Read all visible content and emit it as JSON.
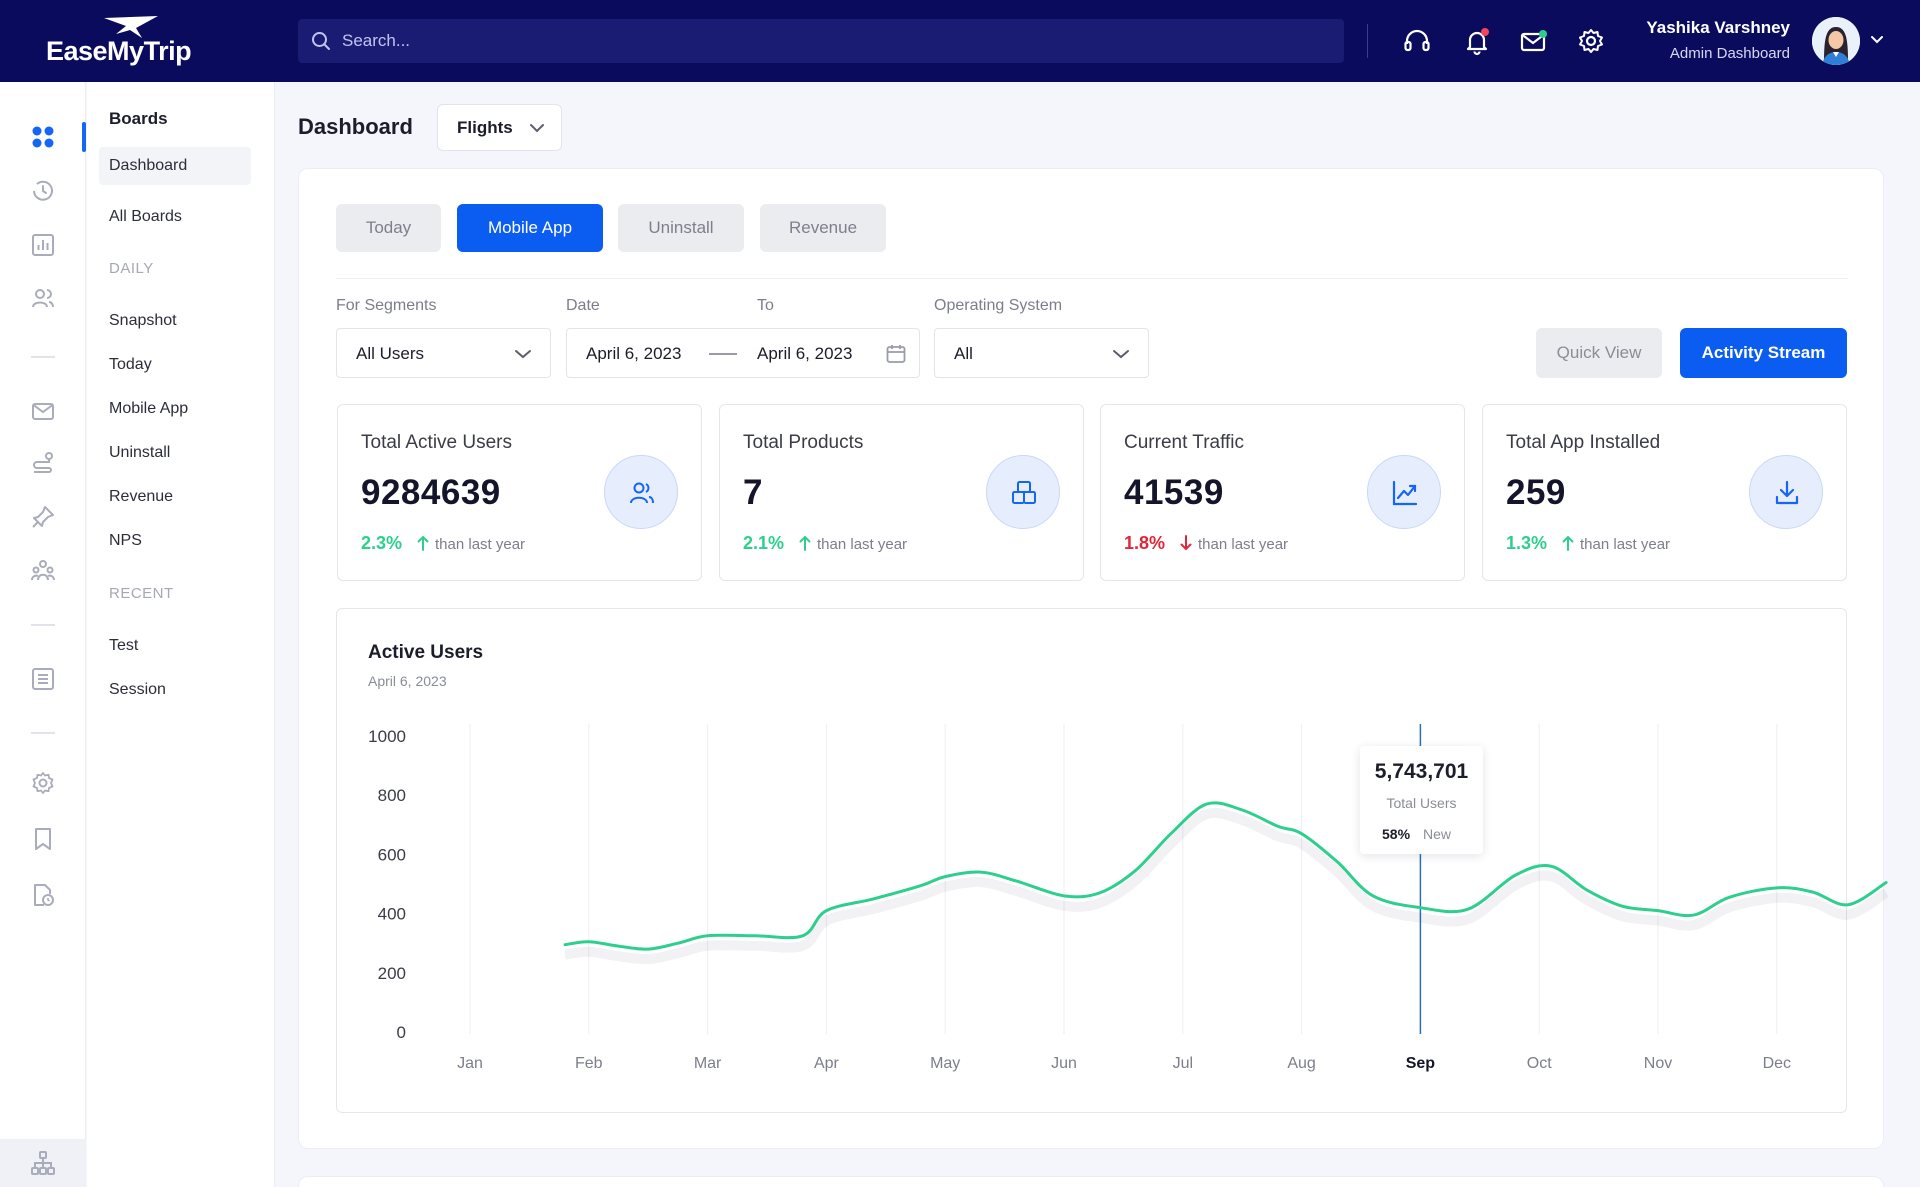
{
  "header": {
    "logo_text": "EaseMyTrip",
    "search_placeholder": "Search...",
    "user_name": "Yashika Varshney",
    "user_role": "Admin Dashboard"
  },
  "rail": {
    "icons": [
      "grid-icon",
      "history-icon",
      "bar-chart-icon",
      "users-icon",
      "mail-icon",
      "route-icon",
      "pin-icon",
      "team-icon",
      "list-icon",
      "settings-icon",
      "bookmark-icon",
      "document-clock-icon",
      "sitemap-icon"
    ]
  },
  "boards": {
    "title": "Boards",
    "items": [
      "Dashboard",
      "All Boards"
    ],
    "daily_section": "DAILY",
    "daily_items": [
      "Snapshot",
      "Today",
      "Mobile App",
      "Uninstall",
      "Revenue",
      "NPS"
    ],
    "recent_section": "RECENT",
    "recent_items": [
      "Test",
      "Session"
    ]
  },
  "main": {
    "title": "Dashboard",
    "module_select": "Flights",
    "tabs": [
      "Today",
      "Mobile App",
      "Uninstall",
      "Revenue"
    ],
    "active_tab": "Mobile App",
    "filters": {
      "segments_label": "For Segments",
      "segments_value": "All Users",
      "date_label": "Date",
      "date_from": "April 6, 2023",
      "to_label": "To",
      "date_to": "April 6, 2023",
      "os_label": "Operating System",
      "os_value": "All"
    },
    "buttons": {
      "quick_view": "Quick View",
      "activity_stream": "Activity Stream"
    },
    "stats": [
      {
        "label": "Total Active Users",
        "value": "9284639",
        "change": "2.3%",
        "direction": "up",
        "note": "than last year",
        "icon": "users-icon"
      },
      {
        "label": "Total Products",
        "value": "7",
        "change": "2.1%",
        "direction": "up",
        "note": "than last year",
        "icon": "box-icon"
      },
      {
        "label": "Current Traffic",
        "value": "41539",
        "change": "1.8%",
        "direction": "down",
        "note": "than last year",
        "icon": "trend-up-icon"
      },
      {
        "label": "Total App Installed",
        "value": "259",
        "change": "1.3%",
        "direction": "up",
        "note": "than last year",
        "icon": "download-icon"
      }
    ]
  },
  "chart_data": {
    "type": "line",
    "title": "Active Users",
    "subtitle": "April 6, 2023",
    "categories": [
      "Jan",
      "Feb",
      "Mar",
      "Apr",
      "May",
      "Jun",
      "Jul",
      "Aug",
      "Sep",
      "Oct",
      "Nov",
      "Dec"
    ],
    "x": [
      0.8,
      1,
      1.25,
      1.5,
      1.75,
      2,
      2.4,
      2.8,
      3,
      3.4,
      3.8,
      4,
      4.3,
      4.6,
      5,
      5.3,
      5.6,
      5.9,
      6.2,
      6.5,
      6.8,
      7,
      7.3,
      7.6,
      8,
      8.4,
      8.8,
      9.1,
      9.4,
      9.7,
      10,
      10.3,
      10.6,
      11,
      11.3,
      11.6,
      11.92
    ],
    "values": [
      295,
      305,
      290,
      280,
      300,
      325,
      325,
      325,
      410,
      450,
      495,
      525,
      540,
      510,
      460,
      470,
      545,
      670,
      770,
      750,
      695,
      670,
      575,
      460,
      420,
      415,
      530,
      560,
      480,
      425,
      410,
      395,
      455,
      487,
      473,
      430,
      505
    ],
    "ylim": [
      0,
      1000
    ],
    "yticks": [
      0,
      200,
      400,
      600,
      800,
      1000
    ],
    "grid": "vertical",
    "highlight_category": "Sep",
    "line_color": "#2ecf8e",
    "tooltip": {
      "value": "5,743,701",
      "label": "Total Users",
      "percent": "58%",
      "secondary": "New"
    }
  },
  "colors": {
    "brand_navy": "#0a0b5c",
    "accent_blue": "#0b5cf0",
    "positive": "#2ecf8e",
    "negative": "#e2263a"
  }
}
